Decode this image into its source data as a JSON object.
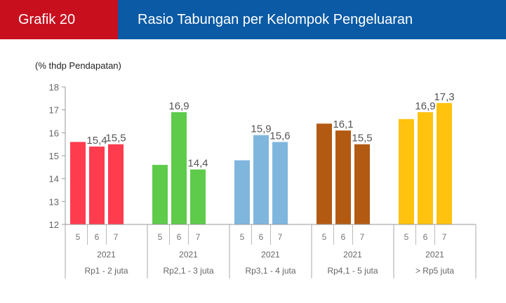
{
  "header": {
    "label": "Grafik 20",
    "title": "Rasio Tabungan per Kelompok Pengeluaran"
  },
  "chart_data": {
    "type": "bar",
    "ylabel": "(% thdp Pendapatan)",
    "ylim": [
      12,
      18
    ],
    "yticks": [
      12,
      13,
      14,
      15,
      16,
      17,
      18
    ],
    "grid": false,
    "groups": [
      {
        "name": "Rp1 - 2 juta",
        "year": "2021",
        "color": "#ff3b4e",
        "categories": [
          "5",
          "6",
          "7"
        ],
        "values": [
          15.6,
          15.4,
          15.5
        ],
        "labels": [
          "",
          "15,4",
          "15,5"
        ]
      },
      {
        "name": "Rp2,1 - 3 juta",
        "year": "2021",
        "color": "#5ecb4a",
        "categories": [
          "5",
          "6",
          "7"
        ],
        "values": [
          14.6,
          16.9,
          14.4
        ],
        "labels": [
          "",
          "16,9",
          "14,4"
        ]
      },
      {
        "name": "Rp3,1 - 4 juta",
        "year": "2021",
        "color": "#7fb6de",
        "categories": [
          "5",
          "6",
          "7"
        ],
        "values": [
          14.8,
          15.9,
          15.6
        ],
        "labels": [
          "",
          "15,9",
          "15,6"
        ]
      },
      {
        "name": "Rp4,1 - 5 juta",
        "year": "2021",
        "color": "#b35a12",
        "categories": [
          "5",
          "6",
          "7"
        ],
        "values": [
          16.4,
          16.1,
          15.5
        ],
        "labels": [
          "",
          "16,1",
          "15,5"
        ]
      },
      {
        "name": "> Rp5 juta",
        "year": "2021",
        "color": "#ffc20e",
        "categories": [
          "5",
          "6",
          "7"
        ],
        "values": [
          16.6,
          16.9,
          17.3
        ],
        "labels": [
          "",
          "16,9",
          "17,3"
        ]
      }
    ]
  }
}
